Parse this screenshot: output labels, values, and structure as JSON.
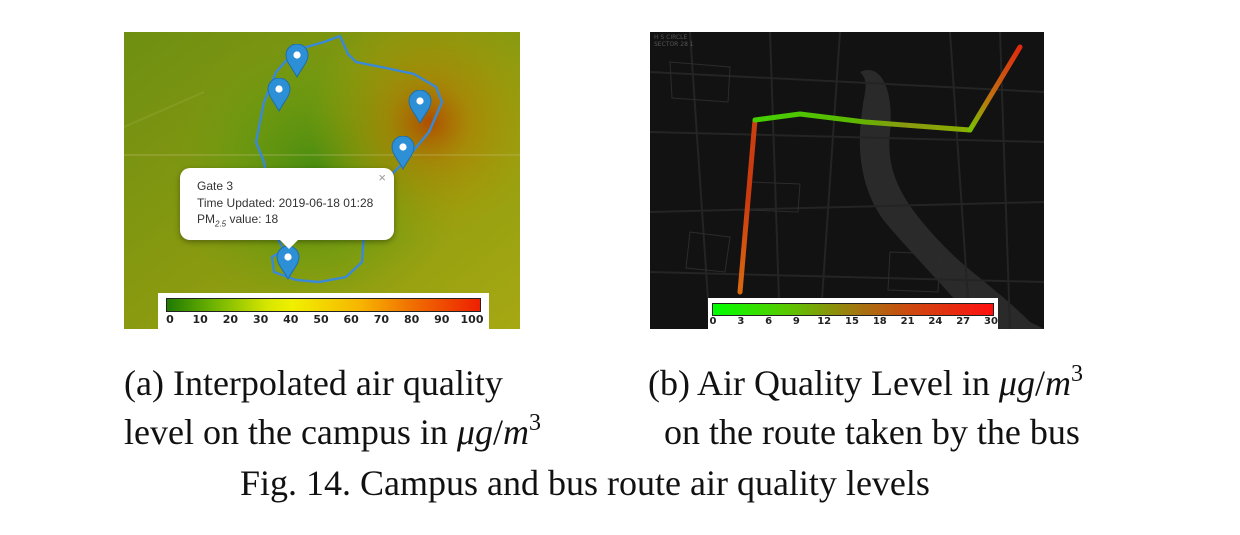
{
  "panel_a": {
    "popup": {
      "close_glyph": "×",
      "gate": "Gate 3",
      "time_updated": "Time Updated: 2019-06-18 01:28",
      "pm_prefix": "PM",
      "pm_sub": "2.5",
      "pm_suffix": " value: 18"
    },
    "colorbar": {
      "ticks": [
        "0",
        "10",
        "20",
        "30",
        "40",
        "50",
        "60",
        "70",
        "80",
        "90",
        "100"
      ],
      "colors": [
        "#1f7a00",
        "#f0f000",
        "#ee2000"
      ]
    },
    "marker_icon": "map-pin-icon"
  },
  "panel_b": {
    "colorbar": {
      "ticks": [
        "0",
        "3",
        "6",
        "9",
        "12",
        "15",
        "18",
        "21",
        "24",
        "27",
        "30"
      ],
      "colors": [
        "#00ff00",
        "#ff1010"
      ]
    },
    "map_labels": [
      "H S CIRCLE",
      "SECTOR 28 1"
    ]
  },
  "captions": {
    "a_line1": "(a) Interpolated air quality",
    "a_line2_pre": "level on the campus in ",
    "b_line1_pre": "(b) Air Quality Level in ",
    "b_line2": "on the route taken by the bus",
    "unit_num": "μg",
    "unit_den": "m",
    "unit_exp": "3",
    "figure": "Fig. 14.  Campus and bus route air quality levels"
  }
}
